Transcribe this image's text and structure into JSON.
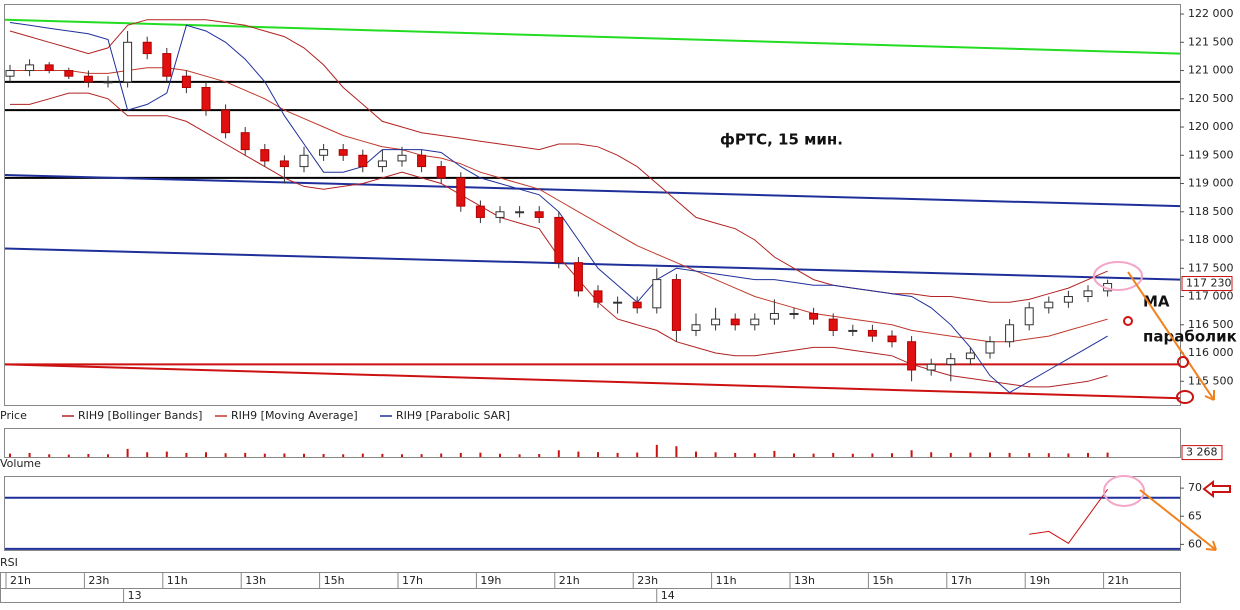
{
  "chart_data": [
    {
      "type": "candlestick",
      "title": "фРТС,  15 мин.",
      "annotations": [
        "MA",
        "параболик"
      ],
      "price_label": "Price",
      "open": [
        120900,
        121000,
        121100,
        121000,
        120900,
        120800,
        120800,
        121500,
        121300,
        120900,
        120700,
        120300,
        119900,
        119600,
        119400,
        119300,
        119500,
        119600,
        119500,
        119300,
        119400,
        119500,
        119300,
        119100,
        118600,
        118400,
        118500,
        118500,
        118400,
        117600,
        117100,
        116900,
        116900,
        116800,
        117300,
        116400,
        116500,
        116600,
        116500,
        116600,
        116700,
        116700,
        116600,
        116400,
        116400,
        116300,
        116200,
        115700,
        115800,
        115900,
        116000,
        116200,
        116500,
        116800,
        116900,
        117000,
        117100
      ],
      "high": [
        121100,
        121200,
        121150,
        121050,
        121000,
        120900,
        121700,
        121600,
        121400,
        121000,
        120800,
        120400,
        120000,
        119700,
        119500,
        119650,
        119700,
        119700,
        119600,
        119600,
        119650,
        119600,
        119400,
        119200,
        118700,
        118600,
        118600,
        118600,
        118500,
        117700,
        117200,
        117000,
        117000,
        117500,
        117400,
        116700,
        116800,
        116700,
        116700,
        116950,
        116800,
        116800,
        116700,
        116500,
        116500,
        116400,
        116300,
        115900,
        116000,
        116100,
        116300,
        116600,
        116900,
        117000,
        117100,
        117200,
        117300
      ],
      "low": [
        120800,
        120900,
        120950,
        120850,
        120700,
        120700,
        120700,
        121200,
        120800,
        120600,
        120200,
        119800,
        119500,
        119300,
        119000,
        119200,
        119400,
        119400,
        119200,
        119200,
        119300,
        119200,
        119000,
        118500,
        118300,
        118300,
        118400,
        118300,
        117500,
        117000,
        116800,
        116700,
        116700,
        116700,
        116200,
        116300,
        116400,
        116400,
        116400,
        116500,
        116600,
        116500,
        116300,
        116300,
        116200,
        116100,
        115500,
        115600,
        115500,
        115800,
        115900,
        116100,
        116400,
        116700,
        116800,
        116900,
        117000
      ],
      "close": [
        121000,
        121100,
        121000,
        120900,
        120800,
        120800,
        121500,
        121300,
        120900,
        120700,
        120300,
        119900,
        119600,
        119400,
        119300,
        119500,
        119600,
        119500,
        119300,
        119400,
        119500,
        119300,
        119100,
        118600,
        118400,
        118500,
        118500,
        118400,
        117600,
        117100,
        116900,
        116900,
        116800,
        117300,
        116400,
        116500,
        116600,
        116500,
        116600,
        116700,
        116700,
        116600,
        116400,
        116400,
        116300,
        116200,
        115700,
        115800,
        115900,
        116000,
        116200,
        116500,
        116800,
        116900,
        117000,
        117100,
        117230
      ],
      "bands": {
        "name": "RIH9 [Bollinger Bands]",
        "color": "#b22222",
        "upper": [
          121700,
          121600,
          121500,
          121400,
          121300,
          121400,
          121800,
          121900,
          121900,
          121900,
          121900,
          121850,
          121800,
          121700,
          121600,
          121400,
          121100,
          120700,
          120400,
          120100,
          120000,
          119900,
          119850,
          119800,
          119750,
          119700,
          119650,
          119600,
          119700,
          119700,
          119650,
          119500,
          119300,
          119000,
          118700,
          118400,
          118300,
          118200,
          118000,
          117700,
          117500,
          117300,
          117200,
          117150,
          117100,
          117050,
          117050,
          117000,
          117000,
          116950,
          116900,
          116900,
          116950,
          117050,
          117150,
          117300,
          117450
        ],
        "lower": [
          120400,
          120400,
          120500,
          120600,
          120600,
          120500,
          120200,
          120200,
          120200,
          120100,
          119900,
          119700,
          119500,
          119300,
          119100,
          118950,
          118900,
          118950,
          119000,
          119100,
          119200,
          119100,
          119000,
          118800,
          118600,
          118400,
          118300,
          118200,
          117700,
          117300,
          116900,
          116600,
          116500,
          116400,
          116200,
          116100,
          116000,
          115950,
          115950,
          116000,
          116050,
          116100,
          116100,
          116050,
          116000,
          115950,
          115800,
          115700,
          115600,
          115550,
          115500,
          115450,
          115400,
          115400,
          115450,
          115500,
          115600
        ]
      },
      "series": [
        {
          "name": "RIH9 [Moving Average]",
          "color": "#c0392b",
          "values": [
            121000,
            121000,
            121000,
            121000,
            120950,
            120950,
            121000,
            121050,
            121050,
            121000,
            120900,
            120800,
            120650,
            120500,
            120300,
            120150,
            120000,
            119850,
            119750,
            119650,
            119600,
            119500,
            119450,
            119350,
            119200,
            119100,
            119000,
            118900,
            118700,
            118500,
            118300,
            118100,
            117900,
            117750,
            117600,
            117450,
            117300,
            117150,
            117000,
            116900,
            116800,
            116700,
            116650,
            116600,
            116550,
            116500,
            116400,
            116350,
            116300,
            116250,
            116200,
            116200,
            116250,
            116300,
            116400,
            116500,
            116600
          ]
        },
        {
          "name": "RIH9 [Parabolic SAR]",
          "color": "#1f2f9a",
          "values": [
            121850,
            121800,
            121750,
            121700,
            121650,
            121550,
            120300,
            120400,
            120600,
            121800,
            121700,
            121500,
            121200,
            120800,
            120200,
            119700,
            119200,
            119200,
            119300,
            119600,
            119600,
            119600,
            119550,
            119300,
            119100,
            119000,
            118900,
            118800,
            118500,
            118000,
            117500,
            117200,
            116900,
            117300,
            117500,
            117450,
            117400,
            117350,
            117300,
            117300,
            117250,
            117200,
            117200,
            117150,
            117100,
            117050,
            117000,
            116800,
            116500,
            116100,
            115600,
            115300,
            115500,
            115700,
            115900,
            116100,
            116300
          ]
        }
      ],
      "trend_lines": [
        {
          "color": "#22dd22",
          "values": [
            121900,
            121300
          ]
        },
        {
          "color": "#000000",
          "values": [
            120800,
            120800
          ]
        },
        {
          "color": "#000000",
          "values": [
            120300,
            120300
          ]
        },
        {
          "color": "#000000",
          "values": [
            119100,
            119100
          ]
        },
        {
          "color": "#1f2f9a",
          "values": [
            119150,
            118600
          ]
        },
        {
          "color": "#1f2f9a",
          "values": [
            117850,
            117300
          ]
        },
        {
          "color": "#cc1111",
          "values": [
            115800,
            115800
          ]
        },
        {
          "color": "#cc1111",
          "values": [
            115800,
            115200
          ]
        }
      ],
      "last_price": {
        "value": 117230,
        "label": "117 230"
      },
      "ylim": [
        115080,
        122160
      ],
      "yticks": [
        {
          "value": 115500,
          "label": "115 500"
        },
        {
          "value": 116000,
          "label": "116 000"
        },
        {
          "value": 116500,
          "label": "116 500"
        },
        {
          "value": 117000,
          "label": "117 000"
        },
        {
          "value": 117500,
          "label": "117 500"
        },
        {
          "value": 118000,
          "label": "118 000"
        },
        {
          "value": 118500,
          "label": "118 500"
        },
        {
          "value": 119000,
          "label": "119 000"
        },
        {
          "value": 119500,
          "label": "119 500"
        },
        {
          "value": 120000,
          "label": "120 000"
        },
        {
          "value": 120500,
          "label": "120 500"
        },
        {
          "value": 121000,
          "label": "121 000"
        },
        {
          "value": 121500,
          "label": "121 500"
        },
        {
          "value": 122000,
          "label": "122 000"
        }
      ]
    },
    {
      "type": "bar",
      "y_label": "Volume",
      "color": "#cc1111",
      "values": [
        2500,
        3000,
        2000,
        1800,
        2200,
        2000,
        6000,
        3500,
        4000,
        3000,
        3500,
        2800,
        3000,
        2500,
        2600,
        2400,
        2200,
        2000,
        2500,
        2300,
        2000,
        2100,
        2600,
        3000,
        3200,
        2400,
        2000,
        2200,
        5000,
        4000,
        3600,
        3000,
        3300,
        9000,
        8000,
        4000,
        3500,
        3000,
        2800,
        4500,
        2600,
        2500,
        3000,
        2400,
        2600,
        2800,
        5000,
        3500,
        3000,
        3200,
        3300,
        3000,
        2900,
        2800,
        2600,
        3000,
        3268
      ],
      "last_value": {
        "value": 3268,
        "label": "3 268"
      },
      "ylim": [
        0,
        20000
      ]
    },
    {
      "type": "line",
      "y_label": "RSI",
      "color": "#cc1111",
      "values": [
        null,
        null,
        null,
        null,
        null,
        null,
        null,
        null,
        null,
        null,
        null,
        null,
        null,
        null,
        null,
        null,
        null,
        null,
        null,
        null,
        null,
        null,
        null,
        null,
        null,
        null,
        null,
        null,
        null,
        null,
        null,
        null,
        null,
        null,
        null,
        null,
        null,
        null,
        null,
        null,
        null,
        null,
        null,
        null,
        null,
        null,
        null,
        null,
        null,
        null,
        null,
        null,
        61.8,
        62.3,
        60.2,
        65,
        69.8
      ],
      "levels": [
        68.3,
        59.2
      ],
      "level_color": "#1f2f9a",
      "ylim": [
        59,
        71.8
      ],
      "yticks": [
        60,
        65,
        70
      ]
    }
  ],
  "time_axis": {
    "labels": [
      "21h",
      "23h",
      "11h",
      "13h",
      "15h",
      "17h",
      "19h",
      "21h",
      "23h",
      "11h",
      "13h",
      "15h",
      "17h",
      "19h",
      "21h"
    ],
    "dates": [
      "13",
      "14"
    ]
  }
}
